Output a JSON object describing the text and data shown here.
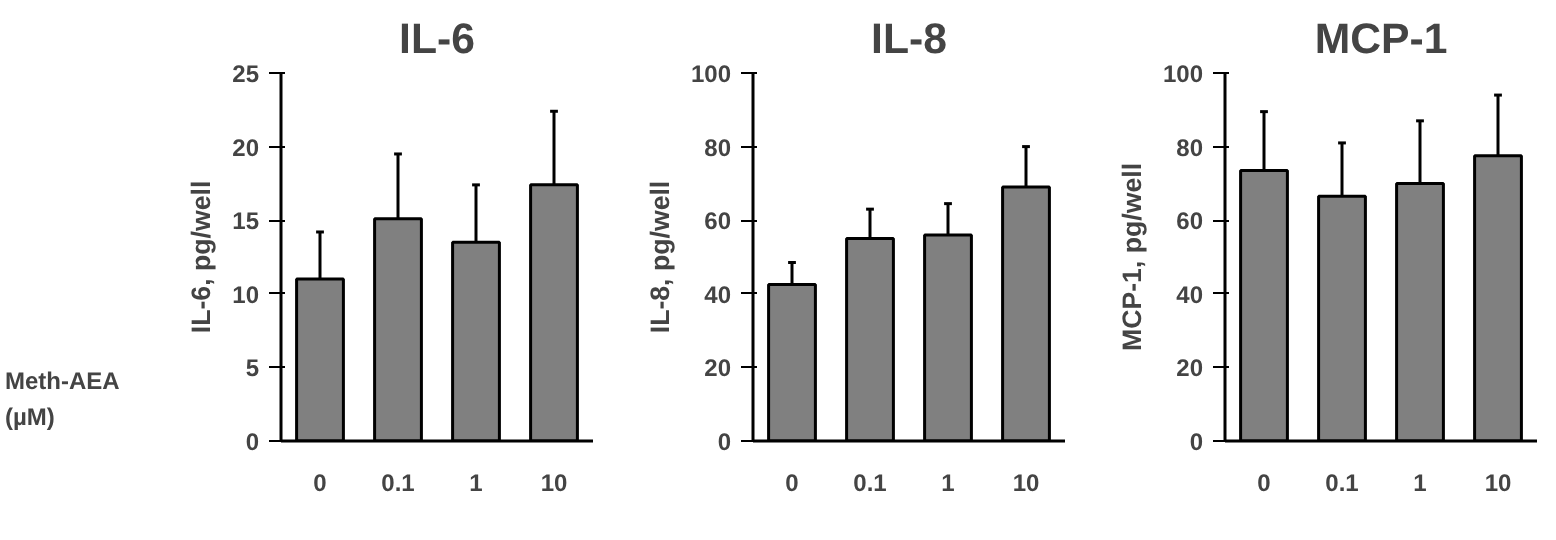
{
  "chart_data": [
    {
      "type": "bar",
      "title": "IL-6",
      "ylabel": "IL-6, pg/well",
      "xlabel": "Meth-AEA (µM)",
      "categories": [
        "0",
        "0.1",
        "1",
        "10"
      ],
      "color": "#808080",
      "values": [
        11,
        15.1,
        13.5,
        17.4
      ],
      "errors": [
        [
          11,
          14.2
        ],
        [
          15.1,
          19.5
        ],
        [
          13.5,
          17.4
        ],
        [
          17.4,
          22.4
        ]
      ],
      "ylim": [
        0,
        25
      ],
      "yticks": [
        0,
        5,
        10,
        15,
        20,
        25
      ],
      "grid": false
    },
    {
      "type": "bar",
      "title": "IL-8",
      "ylabel": "IL-8, pg/well",
      "categories": [
        "0",
        "0.1",
        "1",
        "10"
      ],
      "color": "#808080",
      "values": [
        42.5,
        55,
        56,
        69
      ],
      "errors": [
        [
          42.5,
          48.5
        ],
        [
          55,
          63
        ],
        [
          56,
          64.5
        ],
        [
          69,
          80
        ]
      ],
      "ylim": [
        0,
        100
      ],
      "yticks": [
        0,
        20,
        40,
        60,
        80,
        100
      ],
      "grid": false
    },
    {
      "type": "bar",
      "title": "MCP-1",
      "ylabel": "MCP-1, pg/well",
      "categories": [
        "0",
        "0.1",
        "1",
        "10"
      ],
      "color": "#808080",
      "values": [
        73.5,
        66.5,
        70,
        77.5
      ],
      "errors": [
        [
          73.5,
          89.5
        ],
        [
          66.5,
          81
        ],
        [
          70,
          87
        ],
        [
          77.5,
          94
        ]
      ],
      "ylim": [
        0,
        100
      ],
      "yticks": [
        0,
        20,
        40,
        60,
        80,
        100
      ],
      "grid": false
    }
  ]
}
